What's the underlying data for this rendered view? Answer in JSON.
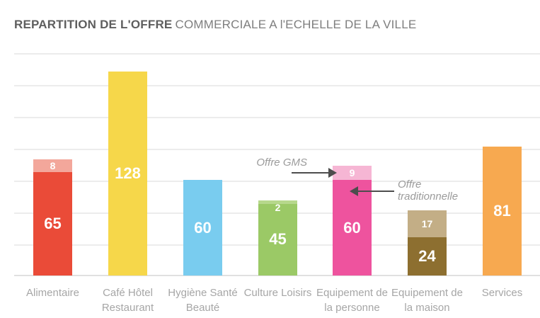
{
  "header": {
    "title_bold": "REPARTITION DE L'OFFRE",
    "title_rest": "COMMERCIALE A l'ECHELLE DE LA VILLE"
  },
  "chart_data": {
    "type": "bar",
    "stacked": true,
    "title": "REPARTITION DE L'OFFRE COMMERCIALE A l'ECHELLE DE LA VILLE",
    "categories": [
      "Alimentaire",
      "Café Hôtel\nRestaurant",
      "Hygiène Santé\nBeauté",
      "Culture Loisirs",
      "Equipement de\nla personne",
      "Equipement de\nla maison",
      "Services"
    ],
    "series": [
      {
        "name": "Offre traditionnelle",
        "values": [
          65,
          128,
          60,
          45,
          60,
          24,
          81
        ],
        "colors": [
          "#ea4b38",
          "#f6d74a",
          "#79ccef",
          "#9bc966",
          "#ee539e",
          "#8d6f30",
          "#f7a950"
        ]
      },
      {
        "name": "Offre GMS",
        "values": [
          8,
          null,
          null,
          2,
          9,
          17,
          null
        ],
        "colors": [
          "#f3a79b",
          null,
          null,
          "#b7d88c",
          "#f6b6d4",
          "#c3ae86",
          null
        ]
      }
    ],
    "ylim": [
      0,
      140
    ],
    "grid_step": 20,
    "grid": true,
    "legend_position": "none",
    "value_label_color": "#ffffff",
    "annotations": [
      {
        "text": "Offre GMS",
        "arrow": "points-right-to-gms-segment"
      },
      {
        "text": "Offre\ntraditionnelle",
        "arrow": "points-left-to-traditional-segment"
      }
    ]
  }
}
